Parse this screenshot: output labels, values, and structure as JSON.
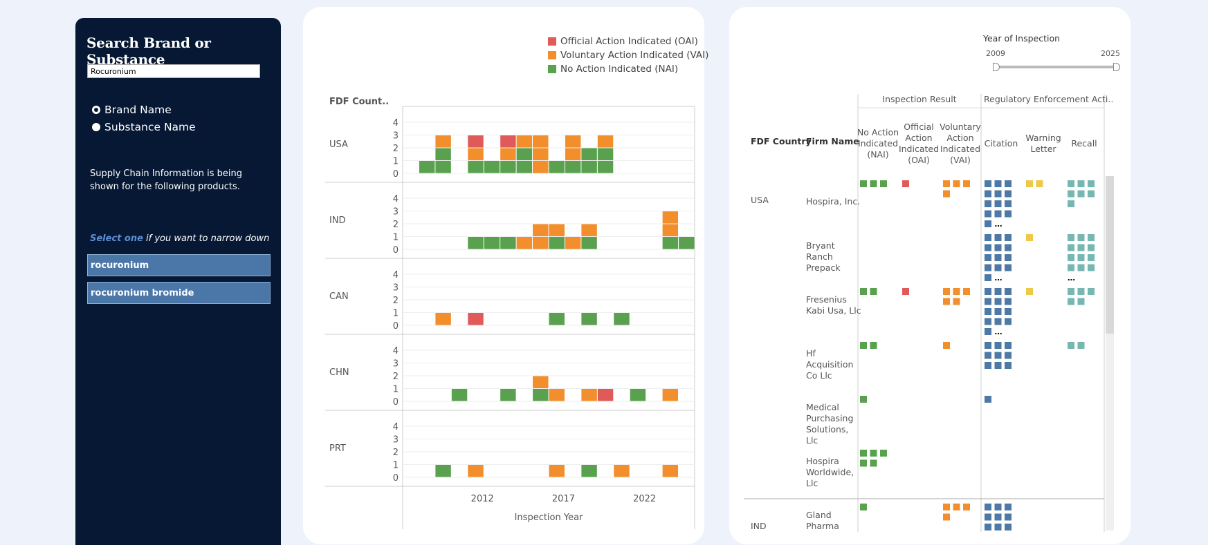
{
  "sidebar": {
    "title": "Search Brand or Substance",
    "search_value": "Rocuronium",
    "radio_brand": "Brand Name",
    "radio_substance": "Substance Name",
    "info": "Supply Chain Information is being shown for the following products.",
    "narrow_hl": "Select one",
    "narrow_rest": " if you want to narrow down",
    "products": [
      "rocuronium",
      "rocuronium bromide"
    ]
  },
  "legend": {
    "oai": "Official Action Indicated (OAI)",
    "vai": "Voluntary Action Indicated (VAI)",
    "nai": "No Action Indicated (NAI)"
  },
  "colors": {
    "oai": "#e05a5a",
    "vai": "#f28e2b",
    "nai": "#59a14f",
    "citation": "#4e79a7",
    "warning": "#edc948",
    "recall": "#76b7b2"
  },
  "chart_data": {
    "type": "bar",
    "stacked": true,
    "title": "",
    "ylabel": "FDF Count..",
    "xlabel": "Inspection Year",
    "xticks": [
      2012,
      2017,
      2022
    ],
    "ylim": [
      0,
      4
    ],
    "yticks": [
      0,
      1,
      2,
      3,
      4
    ],
    "years": [
      2008,
      2009,
      2010,
      2011,
      2012,
      2013,
      2014,
      2015,
      2016,
      2017,
      2018,
      2019,
      2020,
      2021,
      2022,
      2023,
      2024,
      2025
    ],
    "series_order": [
      "nai",
      "vai",
      "oai"
    ],
    "facets": [
      {
        "country": "USA",
        "bars": {
          "2009": {
            "nai": 1
          },
          "2010": {
            "nai": 2,
            "vai": 1
          },
          "2012": {
            "nai": 1,
            "vai": 1,
            "oai": 1
          },
          "2013": {
            "nai": 1
          },
          "2014": {
            "nai": 1,
            "vai": 1,
            "oai": 1
          },
          "2015": {
            "nai": 2,
            "vai": 1
          },
          "2016": {
            "vai": 3
          },
          "2017": {
            "nai": 1
          },
          "2018": {
            "nai": 1,
            "vai": 2
          },
          "2019": {
            "nai": 2
          },
          "2020": {
            "nai": 2,
            "vai": 1
          }
        }
      },
      {
        "country": "IND",
        "bars": {
          "2012": {
            "nai": 1
          },
          "2013": {
            "nai": 1
          },
          "2014": {
            "nai": 1
          },
          "2015": {
            "vai": 1
          },
          "2016": {
            "vai": 2
          },
          "2017": {
            "nai": 1,
            "vai": 1
          },
          "2018": {
            "vai": 1
          },
          "2019": {
            "nai": 1,
            "vai": 1
          },
          "2024": {
            "nai": 1,
            "vai": 2
          },
          "2025": {
            "nai": 1
          }
        }
      },
      {
        "country": "CAN",
        "bars": {
          "2010": {
            "vai": 1
          },
          "2012": {
            "oai": 1
          },
          "2017": {
            "nai": 1
          },
          "2019": {
            "nai": 1
          },
          "2021": {
            "nai": 1
          }
        }
      },
      {
        "country": "CHN",
        "bars": {
          "2011": {
            "nai": 1
          },
          "2014": {
            "nai": 1
          },
          "2016": {
            "nai": 1,
            "vai": 1
          },
          "2017": {
            "vai": 1
          },
          "2019": {
            "vai": 1
          },
          "2020": {
            "oai": 1
          },
          "2022": {
            "nai": 1
          },
          "2024": {
            "vai": 1
          }
        }
      },
      {
        "country": "PRT",
        "bars": {
          "2010": {
            "nai": 1
          },
          "2012": {
            "vai": 1
          },
          "2017": {
            "vai": 1
          },
          "2019": {
            "nai": 1
          },
          "2021": {
            "vai": 1
          },
          "2024": {
            "vai": 1
          }
        }
      }
    ]
  },
  "table": {
    "year_title": "Year of Inspection",
    "year_min": "2009",
    "year_max": "2025",
    "group_result": "Inspection Result",
    "group_enf": "Regulatory Enforcement Acti..",
    "col_country": "FDF Country",
    "col_firm": "Firm Name",
    "col_nai": [
      "No Action",
      "Indicated",
      "(NAI)"
    ],
    "col_oai": [
      "Official",
      "Action",
      "Indicated",
      "(OAI)"
    ],
    "col_vai": [
      "Voluntary",
      "Action",
      "Indicated",
      "(VAI)"
    ],
    "col_citation": "Citation",
    "col_warning": [
      "Warning",
      "Letter"
    ],
    "col_recall": "Recall",
    "rows": [
      {
        "country": "USA",
        "firm": [
          "Hospira, Inc."
        ],
        "nai": 3,
        "oai": 1,
        "vai": 4,
        "citation": "13+",
        "warning": 2,
        "recall": 7
      },
      {
        "country": "",
        "firm": [
          "Bryant",
          "Ranch",
          "Prepack"
        ],
        "nai": 0,
        "oai": 0,
        "vai": 0,
        "citation": "13+",
        "warning": 1,
        "recall": "12+"
      },
      {
        "country": "",
        "firm": [
          "Fresenius",
          "Kabi Usa, Llc"
        ],
        "nai": 2,
        "oai": 1,
        "vai": 5,
        "citation": "13+",
        "warning": 1,
        "recall": 5
      },
      {
        "country": "",
        "firm": [
          "Hf",
          "Acquisition",
          "Co Llc"
        ],
        "nai": 2,
        "oai": 0,
        "vai": 1,
        "citation": 9,
        "warning": 0,
        "recall": 2
      },
      {
        "country": "",
        "firm": [
          "Medical",
          "Purchasing",
          "Solutions,",
          "Llc"
        ],
        "nai": 1,
        "oai": 0,
        "vai": 0,
        "citation": 1,
        "warning": 0,
        "recall": 0
      },
      {
        "country": "",
        "firm": [
          "Hospira",
          "Worldwide,",
          "Llc"
        ],
        "nai": 5,
        "oai": 0,
        "vai": 0,
        "citation": 0,
        "warning": 0,
        "recall": 0
      },
      {
        "country": "IND",
        "firm": [
          "Gland",
          "Pharma"
        ],
        "nai": 1,
        "oai": 0,
        "vai": 4,
        "citation": 12,
        "warning": 0,
        "recall": 0
      }
    ]
  }
}
